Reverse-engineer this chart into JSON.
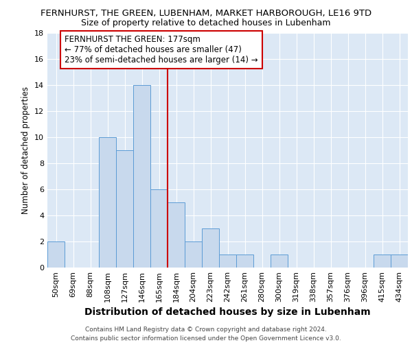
{
  "title": "FERNHURST, THE GREEN, LUBENHAM, MARKET HARBOROUGH, LE16 9TD",
  "subtitle": "Size of property relative to detached houses in Lubenham",
  "xlabel": "Distribution of detached houses by size in Lubenham",
  "ylabel": "Number of detached properties",
  "footer_line1": "Contains HM Land Registry data © Crown copyright and database right 2024.",
  "footer_line2": "Contains public sector information licensed under the Open Government Licence v3.0.",
  "categories": [
    "50sqm",
    "69sqm",
    "88sqm",
    "108sqm",
    "127sqm",
    "146sqm",
    "165sqm",
    "184sqm",
    "204sqm",
    "223sqm",
    "242sqm",
    "261sqm",
    "280sqm",
    "300sqm",
    "319sqm",
    "338sqm",
    "357sqm",
    "376sqm",
    "396sqm",
    "415sqm",
    "434sqm"
  ],
  "values": [
    2,
    0,
    0,
    10,
    9,
    14,
    6,
    5,
    2,
    3,
    1,
    1,
    0,
    1,
    0,
    0,
    0,
    0,
    0,
    1,
    1
  ],
  "bar_color": "#c8d9ed",
  "bar_edge_color": "#5b9bd5",
  "grid_color": "#c8d9ed",
  "background_color": "#dce8f5",
  "annotation_line_color": "#cc0000",
  "annotation_box_text_line1": "FERNHURST THE GREEN: 177sqm",
  "annotation_box_text_line2": "← 77% of detached houses are smaller (47)",
  "annotation_box_text_line3": "23% of semi-detached houses are larger (14) →",
  "annotation_box_color": "#cc0000",
  "ylim": [
    0,
    18
  ],
  "yticks": [
    0,
    2,
    4,
    6,
    8,
    10,
    12,
    14,
    16,
    18
  ],
  "title_fontsize": 9.5,
  "subtitle_fontsize": 9,
  "xlabel_fontsize": 10,
  "ylabel_fontsize": 8.5,
  "tick_fontsize": 8,
  "annot_fontsize": 8.5,
  "footer_fontsize": 6.5
}
